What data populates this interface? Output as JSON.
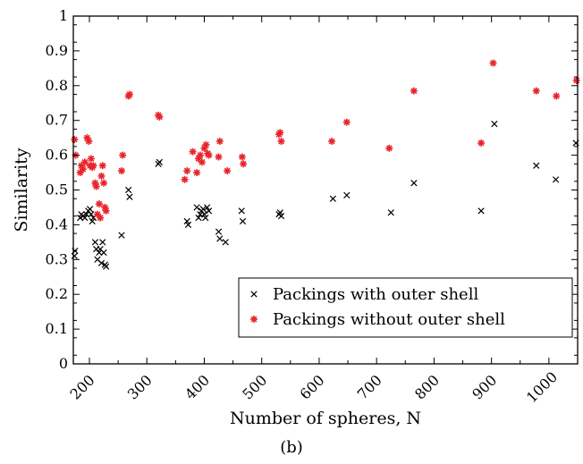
{
  "caption": "(b)",
  "chart_data": {
    "type": "scatter",
    "xlabel": "Number of spheres, N",
    "ylabel": "Similarity",
    "xlim": [
      172,
      1050
    ],
    "ylim": [
      0,
      1
    ],
    "x_ticks": [
      200,
      300,
      400,
      500,
      600,
      700,
      800,
      900,
      1000
    ],
    "y_ticks": [
      0,
      0.1,
      0.2,
      0.3,
      0.4,
      0.5,
      0.6,
      0.7,
      0.8,
      0.9,
      1
    ],
    "grid": false,
    "legend_position": "bottom-right",
    "colors": {
      "with_shell": "#000000",
      "without_shell": "#e8232a"
    },
    "series": [
      {
        "name": "Packings with outer shell",
        "marker": "x",
        "color": "#000000",
        "points": [
          [
            174,
            0.31
          ],
          [
            175,
            0.325
          ],
          [
            184,
            0.42
          ],
          [
            186,
            0.43
          ],
          [
            189,
            0.425
          ],
          [
            192,
            0.42
          ],
          [
            195,
            0.43
          ],
          [
            198,
            0.44
          ],
          [
            201,
            0.445
          ],
          [
            203,
            0.43
          ],
          [
            205,
            0.41
          ],
          [
            207,
            0.42
          ],
          [
            210,
            0.35
          ],
          [
            212,
            0.33
          ],
          [
            214,
            0.3
          ],
          [
            217,
            0.32
          ],
          [
            219,
            0.33
          ],
          [
            221,
            0.29
          ],
          [
            223,
            0.35
          ],
          [
            225,
            0.32
          ],
          [
            227,
            0.285
          ],
          [
            229,
            0.28
          ],
          [
            256,
            0.37
          ],
          [
            268,
            0.5
          ],
          [
            270,
            0.48
          ],
          [
            320,
            0.575
          ],
          [
            322,
            0.58
          ],
          [
            370,
            0.41
          ],
          [
            372,
            0.4
          ],
          [
            387,
            0.45
          ],
          [
            390,
            0.42
          ],
          [
            393,
            0.43
          ],
          [
            395,
            0.44
          ],
          [
            398,
            0.445
          ],
          [
            400,
            0.43
          ],
          [
            402,
            0.42
          ],
          [
            405,
            0.45
          ],
          [
            408,
            0.44
          ],
          [
            425,
            0.38
          ],
          [
            427,
            0.36
          ],
          [
            437,
            0.35
          ],
          [
            465,
            0.44
          ],
          [
            467,
            0.41
          ],
          [
            530,
            0.43
          ],
          [
            532,
            0.435
          ],
          [
            534,
            0.425
          ],
          [
            624,
            0.475
          ],
          [
            648,
            0.485
          ],
          [
            725,
            0.435
          ],
          [
            765,
            0.52
          ],
          [
            882,
            0.44
          ],
          [
            905,
            0.69
          ],
          [
            978,
            0.57
          ],
          [
            1012,
            0.53
          ],
          [
            1047,
            0.635
          ]
        ]
      },
      {
        "name": "Packings without outer shell",
        "marker": "*",
        "color": "#e8232a",
        "points": [
          [
            174,
            0.645
          ],
          [
            176,
            0.6
          ],
          [
            184,
            0.55
          ],
          [
            186,
            0.57
          ],
          [
            189,
            0.56
          ],
          [
            192,
            0.58
          ],
          [
            196,
            0.65
          ],
          [
            199,
            0.64
          ],
          [
            201,
            0.57
          ],
          [
            203,
            0.59
          ],
          [
            205,
            0.565
          ],
          [
            207,
            0.57
          ],
          [
            210,
            0.52
          ],
          [
            212,
            0.51
          ],
          [
            214,
            0.43
          ],
          [
            217,
            0.46
          ],
          [
            219,
            0.42
          ],
          [
            221,
            0.54
          ],
          [
            223,
            0.57
          ],
          [
            225,
            0.52
          ],
          [
            227,
            0.45
          ],
          [
            229,
            0.44
          ],
          [
            256,
            0.555
          ],
          [
            258,
            0.6
          ],
          [
            268,
            0.77
          ],
          [
            270,
            0.775
          ],
          [
            320,
            0.715
          ],
          [
            322,
            0.71
          ],
          [
            366,
            0.53
          ],
          [
            370,
            0.555
          ],
          [
            380,
            0.61
          ],
          [
            387,
            0.55
          ],
          [
            390,
            0.59
          ],
          [
            393,
            0.6
          ],
          [
            396,
            0.58
          ],
          [
            400,
            0.62
          ],
          [
            403,
            0.63
          ],
          [
            406,
            0.605
          ],
          [
            408,
            0.6
          ],
          [
            425,
            0.595
          ],
          [
            427,
            0.64
          ],
          [
            440,
            0.555
          ],
          [
            466,
            0.595
          ],
          [
            468,
            0.575
          ],
          [
            530,
            0.66
          ],
          [
            532,
            0.665
          ],
          [
            534,
            0.64
          ],
          [
            622,
            0.64
          ],
          [
            648,
            0.695
          ],
          [
            722,
            0.62
          ],
          [
            765,
            0.785
          ],
          [
            882,
            0.635
          ],
          [
            903,
            0.865
          ],
          [
            978,
            0.785
          ],
          [
            1013,
            0.77
          ],
          [
            1048,
            0.815
          ]
        ]
      }
    ]
  }
}
